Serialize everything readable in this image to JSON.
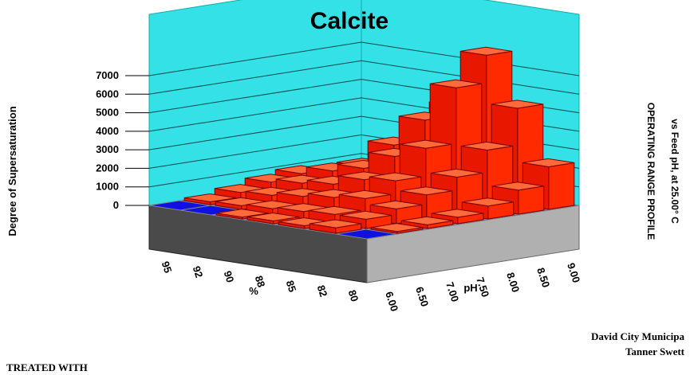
{
  "chart_data": {
    "type": "bar3d",
    "title": "Calcite",
    "zlabel": "Degree of Supersaturation",
    "xlabel": "pH",
    "ylabel": "%",
    "zlim": [
      0,
      7000
    ],
    "z_ticks": [
      "7000",
      "6000",
      "5000",
      "4000",
      "3000",
      "2000",
      "1000",
      "0"
    ],
    "x_categories": [
      "6.00",
      "6.50",
      "7.00",
      "7.50",
      "8.00",
      "8.50",
      "9.00"
    ],
    "y_categories": [
      "80",
      "82",
      "85",
      "88",
      "90",
      "92",
      "95"
    ],
    "values": [
      [
        50,
        100,
        200,
        350,
        700,
        1300,
        2300
      ],
      [
        300,
        500,
        800,
        1300,
        2000,
        3200,
        5200
      ],
      [
        150,
        500,
        1100,
        1800,
        3300,
        6300,
        7800
      ],
      [
        150,
        400,
        900,
        1600,
        2600,
        4300,
        4800
      ],
      [
        100,
        300,
        700,
        1100,
        1700,
        2700,
        2100
      ],
      [
        80,
        200,
        500,
        900,
        1300,
        1300,
        750
      ],
      [
        50,
        150,
        400,
        700,
        900,
        700,
        400
      ]
    ],
    "floor_colors": {
      "saturated": "#ff2200",
      "undersaturated": "#1010e0",
      "near_equilibrium": "#eeee00"
    },
    "floor_states": [
      [
        0,
        0,
        0,
        0,
        0,
        0,
        0
      ],
      [
        0,
        0,
        0,
        0,
        2,
        0,
        0
      ],
      [
        0,
        0,
        0,
        0,
        0,
        0,
        0
      ],
      [
        0,
        0,
        0,
        0,
        0,
        0,
        0
      ],
      [
        0,
        0,
        0,
        0,
        0,
        0,
        0
      ],
      [
        0,
        0,
        0,
        0,
        0,
        0,
        0
      ],
      [
        0,
        0,
        0,
        0,
        0,
        0,
        0
      ]
    ],
    "colors": {
      "bar": "#ff2a00",
      "wall": "#33e1e6",
      "base_left": "#4a4a4a",
      "base_right": "#b0b0b0"
    }
  },
  "side_text": {
    "line1": "OPERATING RANGE PROFILE",
    "line2": "vs Feed pH, at 25.00° C"
  },
  "footer": {
    "company": "David City Municipa",
    "author": "Tanner Swett",
    "treated": "TREATED WITH"
  }
}
